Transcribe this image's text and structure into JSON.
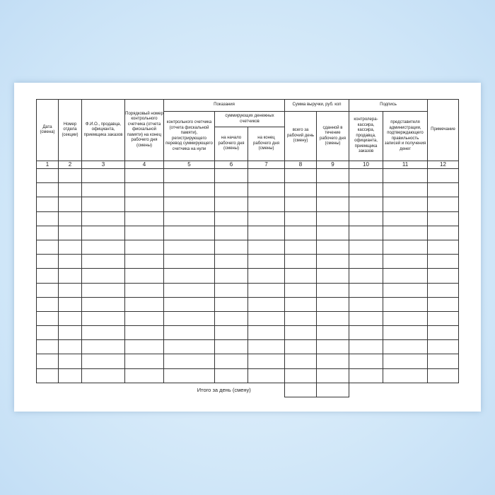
{
  "headers": {
    "c1": "Дата (смена)",
    "c2": "Номер отдела (секции)",
    "c3": "Ф.И.О., продавца, официанта, приемщика заказов",
    "c4": "Порядковый номер контрольного счетчика (отчета фискальной памяти) на конец рабочего дня (смены)",
    "group_readings": "Показания",
    "c5": "контрольного счетчика (отчета фискальной памяти), регистрирующего перевод суммирующего счетчика на нули",
    "group_summing": "суммирующих денежных счетчиков",
    "c6": "на начало рабочего дня (смены)",
    "c7": "на конец рабочего дня (смены)",
    "group_revenue": "Сумма выручки, руб. коп",
    "c8": "всего за рабочий день (смену)",
    "c9": "сданной в течение рабочего дня (смены)",
    "group_signature": "Подпись",
    "c10": "контролера-кассира, кассира, продавца, официанта, приемщика заказов",
    "c11": "представителя администрации, подтверждающего правильность записей и получения денег",
    "c12": "Примечание"
  },
  "column_numbers": [
    "1",
    "2",
    "3",
    "4",
    "5",
    "6",
    "7",
    "8",
    "9",
    "10",
    "11",
    "12"
  ],
  "empty_rows": 15,
  "total_label": "Итого за день (смену)"
}
